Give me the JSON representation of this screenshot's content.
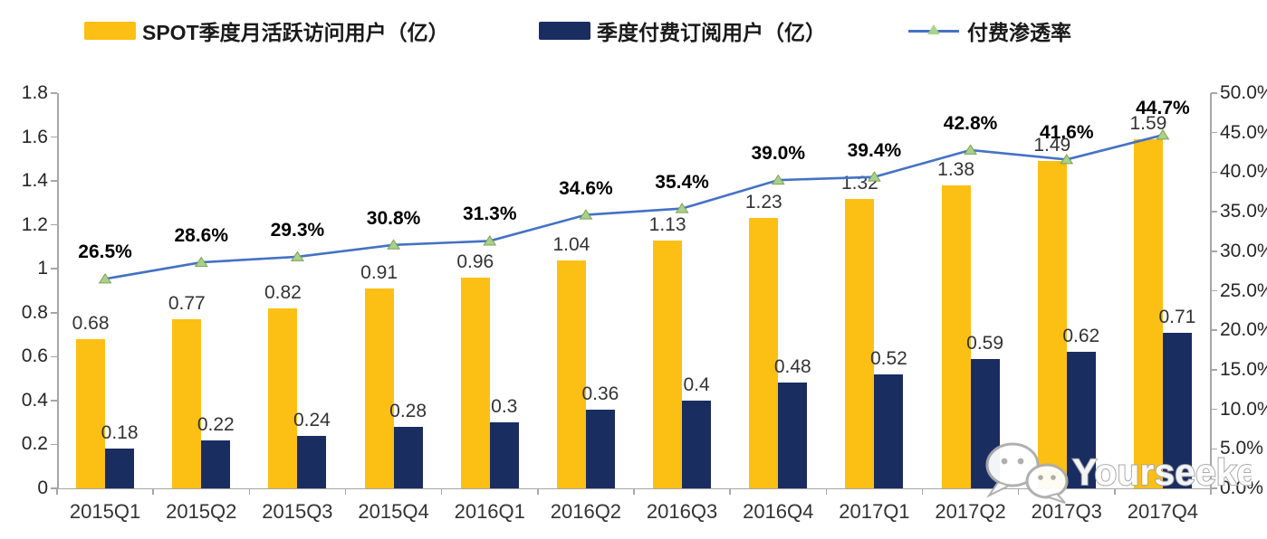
{
  "app": {
    "watermark_text": "Yourseeker"
  },
  "legend": {
    "items": [
      {
        "label": "SPOT季度月活跃访问用户（亿）",
        "type": "bar",
        "color": "#FCBF13"
      },
      {
        "label": "季度付费订阅用户（亿）",
        "type": "bar",
        "color": "#1A2D61"
      },
      {
        "label": "付费渗透率",
        "type": "line",
        "color": "#4472C4",
        "marker_color": "#A9D18E"
      }
    ]
  },
  "chart_data": {
    "type": "bar",
    "combo": "bar+line",
    "title": "",
    "categories": [
      "2015Q1",
      "2015Q2",
      "2015Q3",
      "2015Q4",
      "2016Q1",
      "2016Q2",
      "2016Q3",
      "2016Q4",
      "2017Q1",
      "2017Q2",
      "2017Q3",
      "2017Q4"
    ],
    "series": [
      {
        "name": "SPOT季度月活跃访问用户（亿）",
        "type": "bar",
        "axis": "left",
        "color": "#FCBF13",
        "values": [
          0.68,
          0.77,
          0.82,
          0.91,
          0.96,
          1.04,
          1.13,
          1.23,
          1.32,
          1.38,
          1.49,
          1.59
        ],
        "labels": [
          "0.68",
          "0.77",
          "0.82",
          "0.91",
          "0.96",
          "1.04",
          "1.13",
          "1.23",
          "1.32",
          "1.38",
          "1.49",
          "1.59"
        ]
      },
      {
        "name": "季度付费订阅用户（亿）",
        "type": "bar",
        "axis": "left",
        "color": "#1A2D61",
        "values": [
          0.18,
          0.22,
          0.24,
          0.28,
          0.3,
          0.36,
          0.4,
          0.48,
          0.52,
          0.59,
          0.62,
          0.71
        ],
        "labels": [
          "0.18",
          "0.22",
          "0.24",
          "0.28",
          "0.3",
          "0.36",
          "0.4",
          "0.48",
          "0.52",
          "0.59",
          "0.62",
          "0.71"
        ]
      },
      {
        "name": "付费渗透率",
        "type": "line",
        "axis": "right",
        "color": "#4472C4",
        "marker": "triangle",
        "marker_color": "#A9D18E",
        "values": [
          26.5,
          28.6,
          29.3,
          30.8,
          31.3,
          34.6,
          35.4,
          39.0,
          39.4,
          42.8,
          41.6,
          44.7
        ],
        "labels": [
          "26.5%",
          "28.6%",
          "29.3%",
          "30.8%",
          "31.3%",
          "34.6%",
          "35.4%",
          "39.0%",
          "39.4%",
          "42.8%",
          "41.6%",
          "44.7%"
        ]
      }
    ],
    "left_axis": {
      "min": 0,
      "max": 1.8,
      "tick_labels": [
        "1.8",
        "1.6",
        "1.4",
        "1.2",
        "1",
        "0.8",
        "0.6",
        "0.4",
        "0.2",
        "0"
      ]
    },
    "right_axis": {
      "min": 0,
      "max": 50,
      "tick_labels": [
        "50.0%",
        "45.0%",
        "40.0%",
        "35.0%",
        "30.0%",
        "25.0%",
        "20.0%",
        "15.0%",
        "10.0%",
        "5.0%",
        "0.0%"
      ]
    },
    "grid": false,
    "legend_position": "top"
  }
}
